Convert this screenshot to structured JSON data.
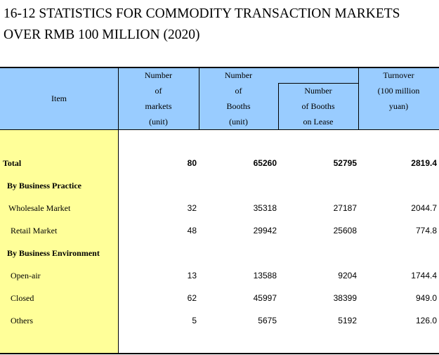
{
  "title": {
    "line1": "16-12  STATISTICS FOR COMMODITY TRANSACTION MARKETS",
    "line2": "OVER RMB 100 MILLION (2020)"
  },
  "header": {
    "item": "Item",
    "markets": "Number\nof\nmarkets\n(unit)",
    "booths": "Number\nof\nBooths\n(unit)",
    "booths_group": "Number",
    "booths_lease": "Number\nof Booths\non Lease",
    "turnover": "Turnover\n(100 million\nyuan)"
  },
  "rows": [
    {
      "label": "Total",
      "markets": "80",
      "booths": "65260",
      "lease": "52795",
      "turnover": "2819.4"
    },
    {
      "label": "By Business Practice",
      "markets": "",
      "booths": "",
      "lease": "",
      "turnover": ""
    },
    {
      "label": "Wholesale Market",
      "markets": "32",
      "booths": "35318",
      "lease": "27187",
      "turnover": "2044.7"
    },
    {
      "label": "Retail Market",
      "markets": "48",
      "booths": "29942",
      "lease": "25608",
      "turnover": "774.8"
    },
    {
      "label": "By Business Environment",
      "markets": "",
      "booths": "",
      "lease": "",
      "turnover": ""
    },
    {
      "label": "Open-air",
      "markets": "13",
      "booths": "13588",
      "lease": "9204",
      "turnover": "1744.4"
    },
    {
      "label": "Closed",
      "markets": "62",
      "booths": "45997",
      "lease": "38399",
      "turnover": "949.0"
    },
    {
      "label": "Others",
      "markets": "5",
      "booths": "5675",
      "lease": "5192",
      "turnover": "126.0"
    }
  ]
}
